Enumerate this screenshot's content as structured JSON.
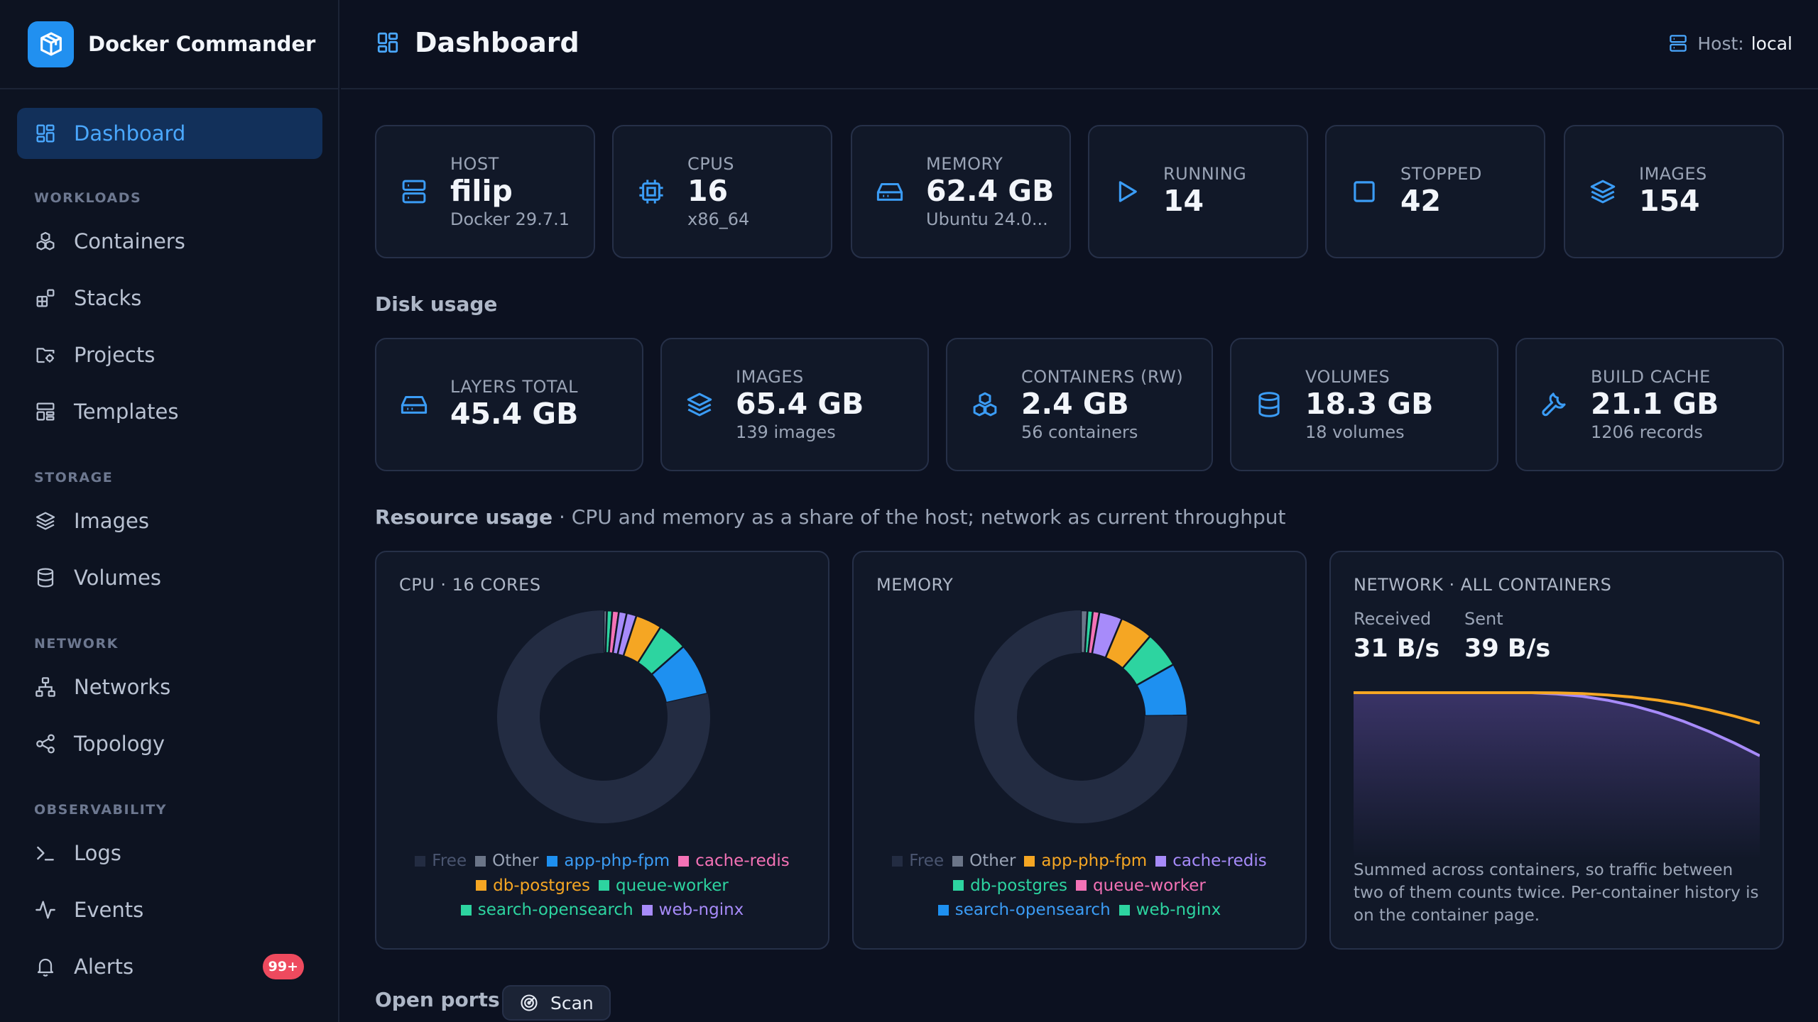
{
  "app": {
    "name": "Docker Commander"
  },
  "sidebar": {
    "items": [
      {
        "label": "Dashboard",
        "icon": "grid-icon"
      },
      {
        "label": "Containers",
        "icon": "boxes-icon"
      },
      {
        "label": "Stacks",
        "icon": "blocks-icon"
      },
      {
        "label": "Projects",
        "icon": "folder-icon"
      },
      {
        "label": "Templates",
        "icon": "template-icon"
      },
      {
        "label": "Images",
        "icon": "layers-icon"
      },
      {
        "label": "Volumes",
        "icon": "database-icon"
      },
      {
        "label": "Networks",
        "icon": "network-icon"
      },
      {
        "label": "Topology",
        "icon": "share-icon"
      },
      {
        "label": "Logs",
        "icon": "terminal-icon"
      },
      {
        "label": "Events",
        "icon": "activity-icon"
      },
      {
        "label": "Alerts",
        "icon": "bell-icon",
        "badge": "99+"
      }
    ],
    "sections": [
      "WORKLOADS",
      "STORAGE",
      "NETWORK",
      "OBSERVABILITY"
    ],
    "active": "Dashboard"
  },
  "header": {
    "title": "Dashboard",
    "host_label": "Host:",
    "host_value": "local"
  },
  "summary": [
    {
      "label": "HOST",
      "value": "filip",
      "sub": "Docker 29.7.1",
      "icon": "server-icon"
    },
    {
      "label": "CPUS",
      "value": "16",
      "sub": "x86_64",
      "icon": "cpu-icon"
    },
    {
      "label": "MEMORY",
      "value": "62.4 GB",
      "sub": "Ubuntu 24.0...",
      "icon": "hard-drive-icon"
    },
    {
      "label": "RUNNING",
      "value": "14",
      "icon": "play-icon"
    },
    {
      "label": "STOPPED",
      "value": "42",
      "icon": "square-icon"
    },
    {
      "label": "IMAGES",
      "value": "154",
      "icon": "layers-icon"
    }
  ],
  "disk": {
    "title": "Disk usage",
    "cards": [
      {
        "label": "LAYERS TOTAL",
        "value": "45.4 GB",
        "icon": "hard-drive-icon"
      },
      {
        "label": "IMAGES",
        "value": "65.4 GB",
        "sub": "139 images",
        "icon": "layers-icon"
      },
      {
        "label": "CONTAINERS (RW)",
        "value": "2.4 GB",
        "sub": "56 containers",
        "icon": "boxes-icon"
      },
      {
        "label": "VOLUMES",
        "value": "18.3 GB",
        "sub": "18 volumes",
        "icon": "database-icon"
      },
      {
        "label": "BUILD CACHE",
        "value": "21.1 GB",
        "sub": "1206 records",
        "icon": "wrench-icon"
      }
    ]
  },
  "resource": {
    "title": "Resource usage",
    "description": " · CPU and memory as a share of the host; network as current throughput",
    "cpu_title": "CPU · 16 CORES",
    "memory_title": "MEMORY",
    "network": {
      "title": "NETWORK · ALL CONTAINERS",
      "received_label": "Received",
      "received_value": "31 B/s",
      "sent_label": "Sent",
      "sent_value": "39 B/s",
      "note": "Summed across containers, so traffic between two of them counts twice. Per-container history is on the container page."
    }
  },
  "ports": {
    "title": "Open ports",
    "scan_label": "Scan"
  },
  "colors": {
    "accent": "#2190f0",
    "free": "#232c42",
    "other": "#6b7588",
    "alert_badge": "#ee4a5e",
    "received": "#f5a623",
    "sent": "#a78bfa"
  },
  "chart_data": [
    {
      "type": "pie",
      "title": "CPU · 16 CORES",
      "categories": [
        "Free",
        "Other",
        "app-php-fpm",
        "cache-redis",
        "db-postgres",
        "queue-worker",
        "search-opensearch",
        "web-nginx"
      ],
      "colors": [
        "#232c42",
        "#6b7588",
        "#1e90f0",
        "#f472b6",
        "#f5a623",
        "#2dd4a0",
        "#2dd4a0",
        "#a78bfa"
      ],
      "legend_text_colors": [
        "#4a5570",
        "#9aa4b6",
        "#3b9cf5",
        "#f472b6",
        "#f5a623",
        "#2dd4a0",
        "#2dd4a0",
        "#a78bfa"
      ],
      "legend_rows": [
        [
          0,
          1,
          2,
          3
        ],
        [
          4,
          5
        ],
        [
          6,
          7
        ]
      ],
      "slices": [
        {
          "name": "Other",
          "value": 0.5
        },
        {
          "name": "queue-worker",
          "value": 0.8
        },
        {
          "name": "cache-redis",
          "value": 1.0
        },
        {
          "name": "web-nginx",
          "value": 1.2
        },
        {
          "name": "web-nginx",
          "value": 1.5
        },
        {
          "name": "db-postgres",
          "value": 4.0
        },
        {
          "name": "search-opensearch",
          "value": 4.5
        },
        {
          "name": "app-php-fpm",
          "value": 8.0
        },
        {
          "name": "Free",
          "value": 78.5
        }
      ]
    },
    {
      "type": "pie",
      "title": "MEMORY",
      "categories": [
        "Free",
        "Other",
        "app-php-fpm",
        "cache-redis",
        "db-postgres",
        "queue-worker",
        "search-opensearch",
        "web-nginx"
      ],
      "colors": [
        "#232c42",
        "#6b7588",
        "#f5a623",
        "#a78bfa",
        "#2dd4a0",
        "#f472b6",
        "#1e90f0",
        "#2dd4a0"
      ],
      "legend_text_colors": [
        "#4a5570",
        "#9aa4b6",
        "#f5a623",
        "#a78bfa",
        "#2dd4a0",
        "#f472b6",
        "#3b9cf5",
        "#2dd4a0"
      ],
      "legend_rows": [
        [
          0,
          1,
          2,
          3
        ],
        [
          4,
          5
        ],
        [
          6,
          7
        ]
      ],
      "slices": [
        {
          "name": "Other",
          "value": 1.0
        },
        {
          "name": "web-nginx",
          "value": 0.8
        },
        {
          "name": "queue-worker",
          "value": 1.0
        },
        {
          "name": "cache-redis",
          "value": 3.5
        },
        {
          "name": "app-php-fpm",
          "value": 5.0
        },
        {
          "name": "db-postgres",
          "value": 5.5
        },
        {
          "name": "search-opensearch",
          "value": 8.0
        },
        {
          "name": "Free",
          "value": 75.2
        }
      ]
    },
    {
      "type": "area",
      "title": "NETWORK · ALL CONTAINERS",
      "series": [
        {
          "name": "Received",
          "values": [
            30,
            30,
            30,
            30,
            30,
            30,
            30,
            30,
            29.9,
            29.6,
            29.0,
            28.1,
            26.8,
            25.0,
            22.7,
            20.0,
            17.0
          ]
        },
        {
          "name": "Sent",
          "values": [
            30,
            30,
            30,
            30,
            30,
            30,
            30,
            30,
            29.5,
            28.5,
            26.8,
            24.5,
            21.5,
            17.8,
            13.5,
            8.6,
            3.2
          ]
        }
      ],
      "colors": [
        "#f5a623",
        "#a78bfa"
      ],
      "ylim": [
        -40,
        30
      ],
      "grid": false
    }
  ]
}
